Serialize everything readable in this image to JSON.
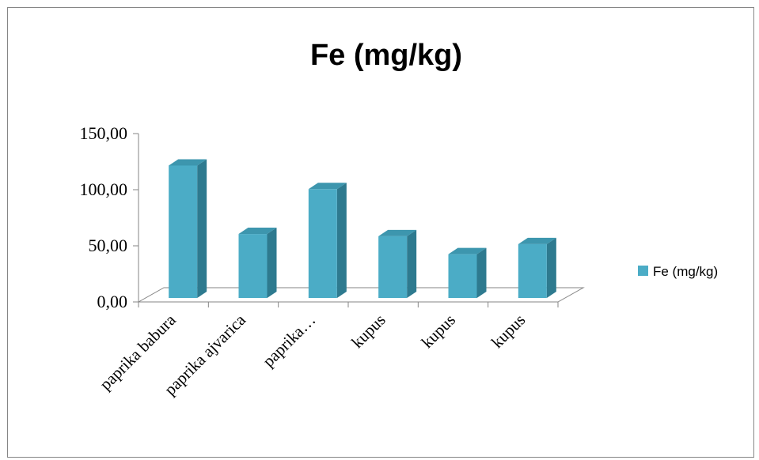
{
  "chart_data": {
    "type": "bar",
    "title": "Fe (mg/kg)",
    "categories": [
      "paprika babura",
      "paprika ajvarica",
      "paprika…",
      "kupus",
      "kupus",
      "kupus"
    ],
    "series": [
      {
        "name": "Fe (mg/kg)",
        "values": [
          118,
          57,
          97,
          55,
          39,
          48
        ],
        "color": "#4BACC6"
      }
    ],
    "yticks": [
      "0,00",
      "50,00",
      "100,00",
      "150,00"
    ],
    "ylim": [
      0,
      150
    ],
    "legend_position": "right",
    "style": "3d-column"
  }
}
